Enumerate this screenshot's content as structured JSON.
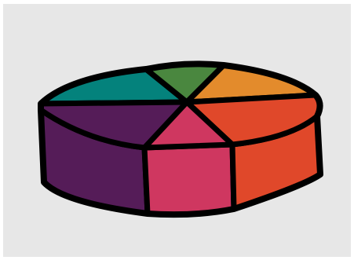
{
  "canvas": {
    "background": "#e7e7e7"
  },
  "illustration": {
    "subject": "3d-pie-cake",
    "outline_color": "#000000",
    "colors": {
      "teal": "#04827c",
      "green": "#4a873f",
      "orange": "#e38b2c",
      "red_orange": "#e0482a",
      "pink": "#cf3760",
      "purple": "#551c58"
    }
  }
}
